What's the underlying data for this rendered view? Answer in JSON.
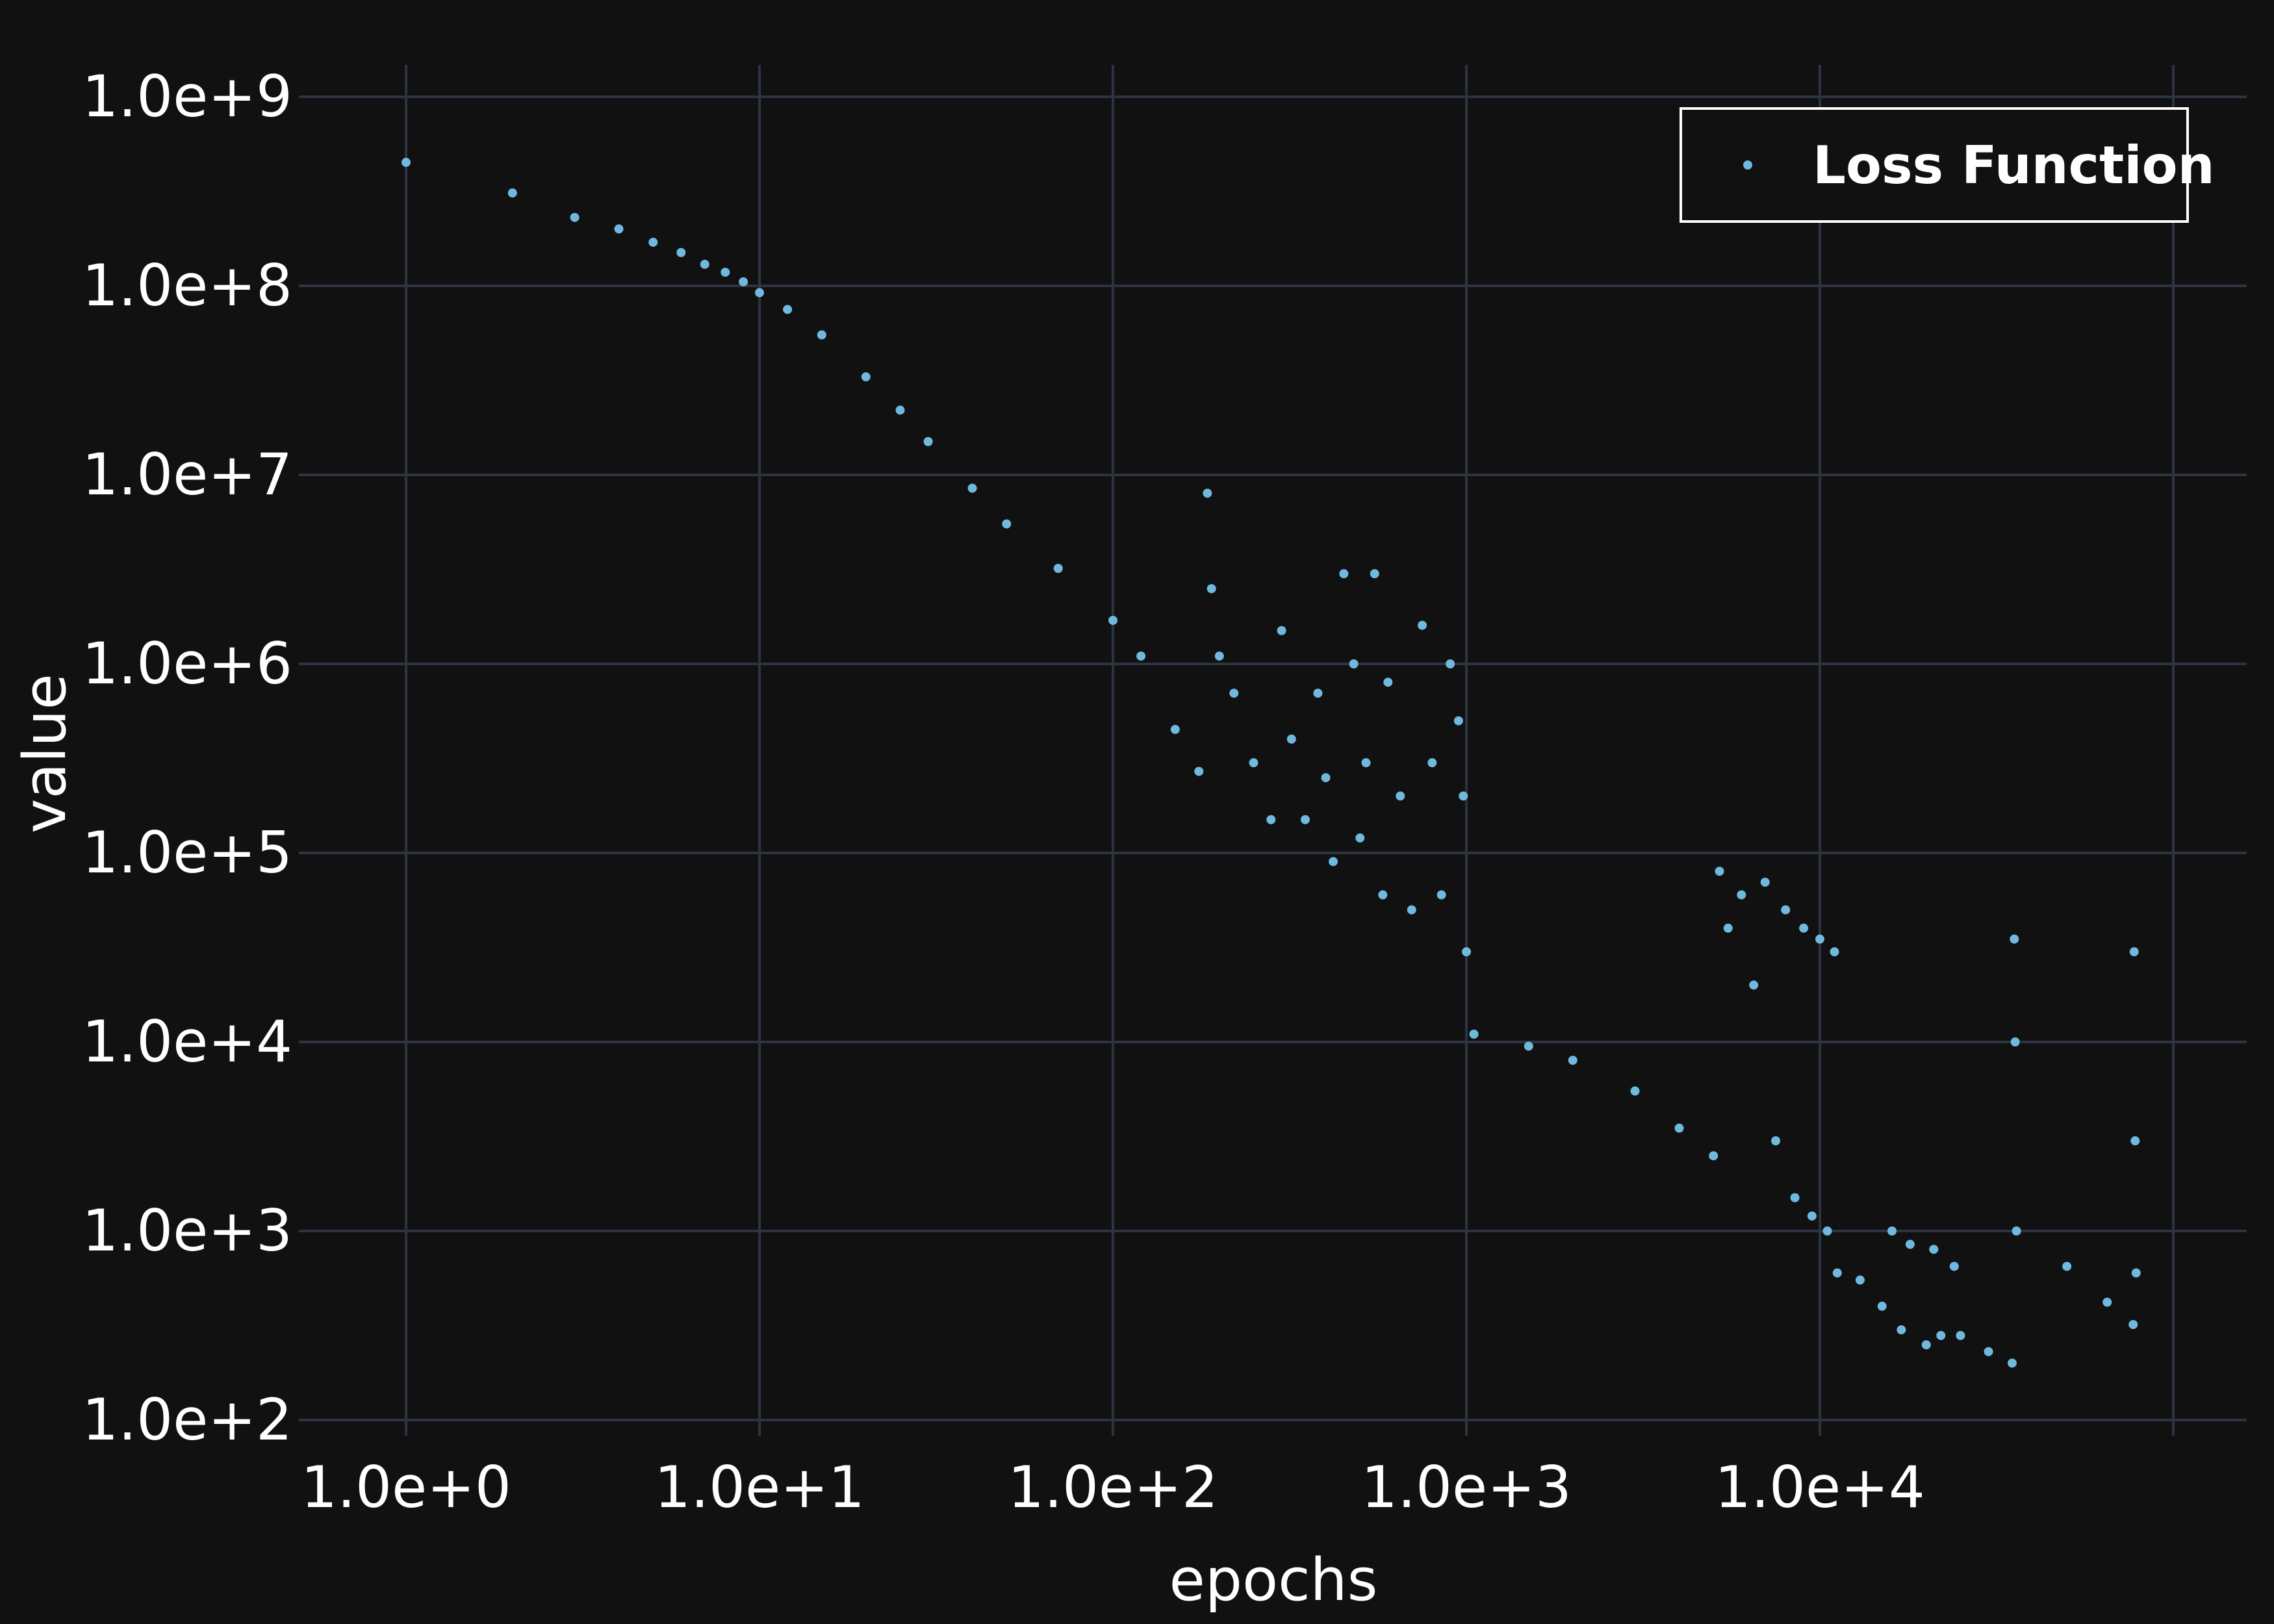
{
  "chart_data": {
    "type": "scatter",
    "title": "",
    "xlabel": "epochs",
    "ylabel": "value",
    "x_scale": "log",
    "y_scale": "log",
    "xlim": [
      1,
      100000
    ],
    "ylim": [
      100,
      1000000000
    ],
    "x_tick_labels": [
      "1.0e+0",
      "1.0e+1",
      "1.0e+2",
      "1.0e+3",
      "1.0e+4"
    ],
    "y_tick_labels": [
      "1.0e+9",
      "1.0e+8",
      "1.0e+7",
      "1.0e+6",
      "1.0e+5",
      "1.0e+4",
      "1.0e+3",
      "1.0e+2"
    ],
    "grid": true,
    "legend_position": "top-right",
    "colors": {
      "background": "#111111",
      "grid": "#2b3440",
      "series": "#6fb8de",
      "text": "#ffffff"
    },
    "series": [
      {
        "name": "Loss Function",
        "points": [
          [
            1,
            450000000
          ],
          [
            2,
            310000000
          ],
          [
            3,
            230000000
          ],
          [
            4,
            200000000
          ],
          [
            5,
            170000000
          ],
          [
            6,
            150000000
          ],
          [
            7,
            130000000
          ],
          [
            8,
            118000000
          ],
          [
            9,
            105000000
          ],
          [
            10,
            92000000
          ],
          [
            12,
            75000000
          ],
          [
            15,
            55000000
          ],
          [
            20,
            33000000
          ],
          [
            25,
            22000000
          ],
          [
            30,
            15000000
          ],
          [
            40,
            8500000
          ],
          [
            50,
            5500000
          ],
          [
            70,
            3200000
          ],
          [
            100,
            1700000
          ],
          [
            120,
            1100000
          ],
          [
            150,
            450000
          ],
          [
            175,
            270000
          ],
          [
            185,
            8000000
          ],
          [
            190,
            2500000
          ],
          [
            200,
            1100000
          ],
          [
            220,
            700000
          ],
          [
            250,
            300000
          ],
          [
            280,
            150000
          ],
          [
            300,
            1500000
          ],
          [
            320,
            400000
          ],
          [
            350,
            150000
          ],
          [
            380,
            700000
          ],
          [
            400,
            250000
          ],
          [
            420,
            90000
          ],
          [
            450,
            3000000
          ],
          [
            480,
            1000000
          ],
          [
            500,
            120000
          ],
          [
            520,
            300000
          ],
          [
            550,
            3000000
          ],
          [
            580,
            60000
          ],
          [
            600,
            800000
          ],
          [
            650,
            200000
          ],
          [
            700,
            50000
          ],
          [
            750,
            1600000
          ],
          [
            800,
            300000
          ],
          [
            850,
            60000
          ],
          [
            900,
            1000000
          ],
          [
            950,
            500000
          ],
          [
            980,
            200000
          ],
          [
            1000,
            30000
          ],
          [
            1050,
            11000
          ],
          [
            1500,
            9500
          ],
          [
            2000,
            8000
          ],
          [
            3000,
            5500
          ],
          [
            4000,
            3500
          ],
          [
            5000,
            2500
          ],
          [
            5200,
            80000
          ],
          [
            5500,
            40000
          ],
          [
            6000,
            60000
          ],
          [
            6500,
            20000
          ],
          [
            7000,
            70000
          ],
          [
            7500,
            3000
          ],
          [
            8000,
            50000
          ],
          [
            8500,
            1500
          ],
          [
            9000,
            40000
          ],
          [
            9500,
            1200
          ],
          [
            10000,
            35000
          ],
          [
            10500,
            1000
          ],
          [
            11000,
            30000
          ],
          [
            11200,
            600
          ],
          [
            13000,
            550
          ],
          [
            15000,
            400
          ],
          [
            16000,
            1000
          ],
          [
            17000,
            300
          ],
          [
            18000,
            850
          ],
          [
            20000,
            250
          ],
          [
            21000,
            800
          ],
          [
            22000,
            280
          ],
          [
            24000,
            650
          ],
          [
            25000,
            280
          ],
          [
            30000,
            230
          ],
          [
            35000,
            200
          ],
          [
            35500,
            35000
          ],
          [
            35700,
            10000
          ],
          [
            36000,
            1000
          ],
          [
            50000,
            650
          ],
          [
            65000,
            420
          ],
          [
            77000,
            320
          ],
          [
            77500,
            30000
          ],
          [
            78000,
            3000
          ],
          [
            78500,
            600
          ]
        ]
      }
    ]
  }
}
